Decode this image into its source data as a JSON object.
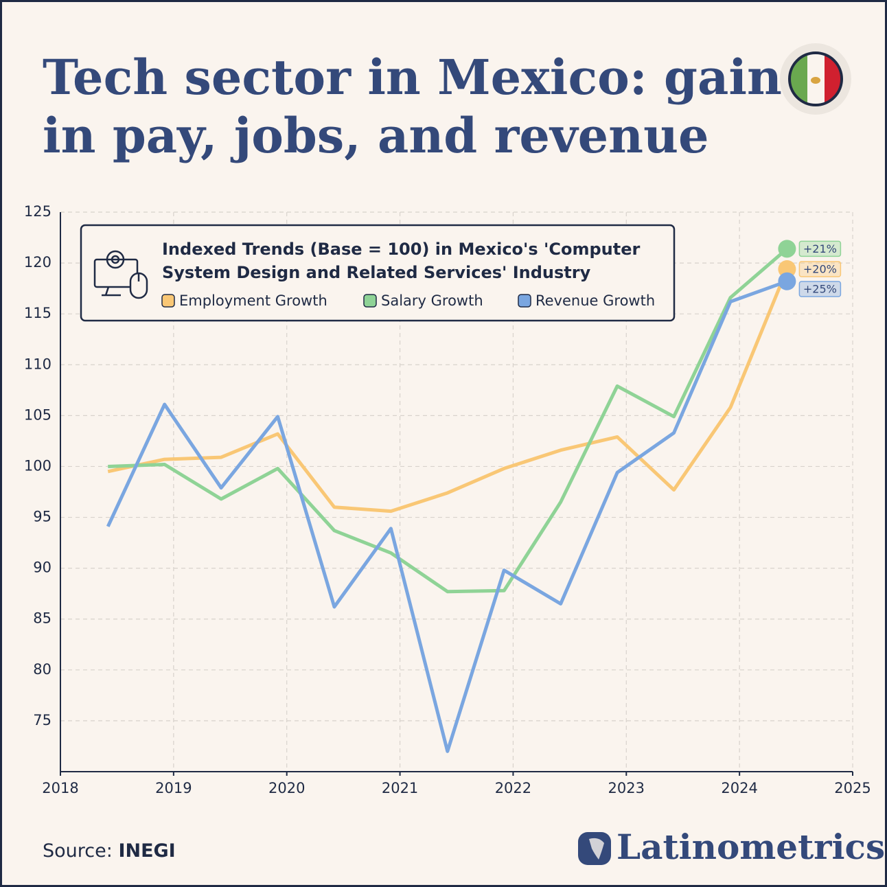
{
  "chart_data": {
    "type": "line",
    "title": [
      "Tech sector in Mexico: gains",
      "in pay, jobs, and revenue"
    ],
    "legend_title": [
      "Indexed Trends (Base = 100) in Mexico's 'Computer",
      "System Design and Related Services' Industry"
    ],
    "x": [
      2018.42,
      2018.92,
      2019.42,
      2019.92,
      2020.42,
      2020.92,
      2021.42,
      2021.92,
      2022.42,
      2022.92,
      2023.42,
      2023.92,
      2024.42
    ],
    "series": [
      {
        "name": "Employment Growth",
        "color": "#f9c775",
        "end_label": "+20%",
        "values": [
          99.5,
          100.7,
          100.9,
          103.2,
          96.0,
          95.6,
          97.4,
          99.8,
          101.6,
          102.9,
          97.7,
          105.8,
          119.4
        ]
      },
      {
        "name": "Salary Growth",
        "color": "#8fd396",
        "end_label": "+21%",
        "values": [
          100.0,
          100.2,
          96.8,
          99.8,
          93.7,
          91.5,
          87.7,
          87.8,
          96.5,
          107.9,
          104.9,
          116.6,
          121.4
        ]
      },
      {
        "name": "Revenue Growth",
        "color": "#7aa6e0",
        "end_label": "+25%",
        "values": [
          94.1,
          106.1,
          97.9,
          104.9,
          86.2,
          93.9,
          72.0,
          89.8,
          86.5,
          99.4,
          103.3,
          116.2,
          118.2
        ]
      }
    ],
    "xlim": [
      2018,
      2025
    ],
    "xticks": [
      2018,
      2019,
      2020,
      2021,
      2022,
      2023,
      2024,
      2025
    ],
    "ylim": [
      70,
      125
    ],
    "yticks": [
      75,
      80,
      85,
      90,
      95,
      100,
      105,
      110,
      115,
      120,
      125
    ],
    "grid": true,
    "source_label": "Source:",
    "source": "INEGI",
    "brand": "Latinometrics"
  }
}
